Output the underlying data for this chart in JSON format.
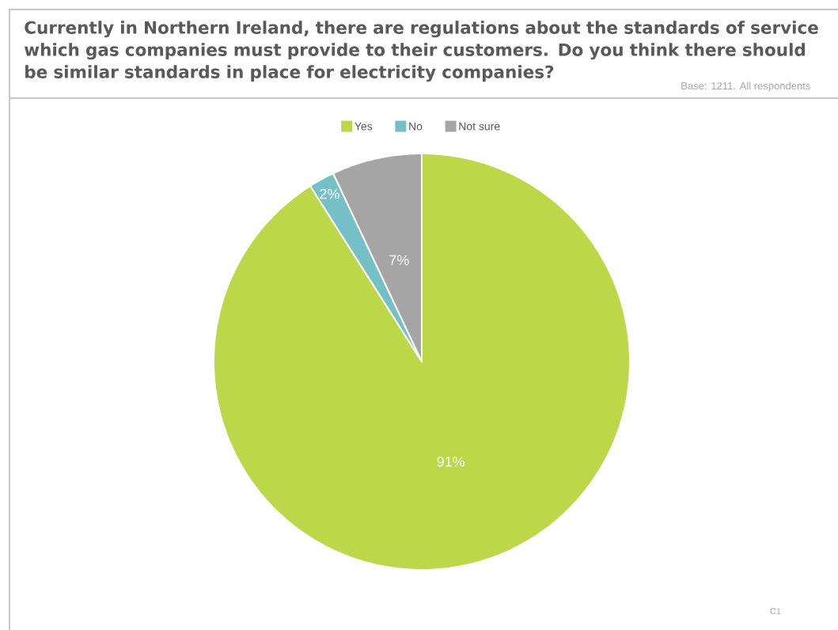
{
  "chart_data": {
    "type": "pie",
    "title": "Currently in Northern Ireland, there are regulations about the standards of service which gas companies must provide to their customers. Do you think there should be similar standards in place for electricity companies?",
    "annotations": [
      "Base: 1211. All respondents",
      "C1"
    ],
    "categories": [
      "Yes",
      "No",
      "Not sure"
    ],
    "values": [
      91,
      2,
      7
    ],
    "colors": [
      "#bcd748",
      "#74c0c6",
      "#a5a5a5"
    ],
    "value_labels": [
      "91%",
      "2%",
      "7%"
    ],
    "legend": "top"
  }
}
